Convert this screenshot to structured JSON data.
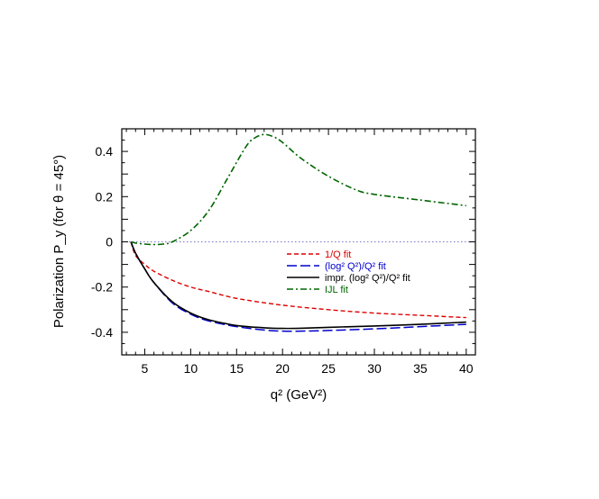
{
  "chart_data": {
    "type": "line",
    "xlabel": "q² (GeV²)",
    "ylabel": "Polarization P_y (for θ = 45°)",
    "xlim": [
      2.5,
      41
    ],
    "ylim": [
      -0.5,
      0.5
    ],
    "x_ticks": [
      5,
      10,
      15,
      20,
      25,
      30,
      35,
      40
    ],
    "y_ticks": [
      0.4,
      0.2,
      0,
      -0.2,
      -0.4
    ],
    "y_tick_labels": [
      "0.4",
      "0.2",
      "0",
      "-0.2",
      "-0.4"
    ],
    "grid": false,
    "zero_line": true,
    "legend_position": "lower-right",
    "series": [
      {
        "name": "1/Q fit",
        "color": "#dd0000",
        "dash": "short-dash",
        "x": [
          3.5,
          4,
          5,
          6,
          8,
          10,
          12,
          15,
          20,
          25,
          30,
          35,
          40
        ],
        "y": [
          0,
          -0.06,
          -0.1,
          -0.13,
          -0.17,
          -0.2,
          -0.22,
          -0.25,
          -0.28,
          -0.3,
          -0.315,
          -0.325,
          -0.335
        ]
      },
      {
        "name": "(log² Q²)/Q² fit",
        "color": "#0000cc",
        "dash": "long-dash",
        "x": [
          3.5,
          4,
          5,
          6,
          8,
          10,
          12,
          15,
          18,
          20,
          22,
          25,
          30,
          35,
          40
        ],
        "y": [
          0,
          -0.05,
          -0.12,
          -0.18,
          -0.27,
          -0.32,
          -0.35,
          -0.375,
          -0.39,
          -0.395,
          -0.395,
          -0.392,
          -0.385,
          -0.375,
          -0.365
        ]
      },
      {
        "name": "impr. (log² Q²)/Q² fit",
        "color": "#000000",
        "dash": "solid",
        "x": [
          3.5,
          4,
          5,
          6,
          8,
          10,
          12,
          15,
          18,
          20,
          22,
          25,
          30,
          35,
          40
        ],
        "y": [
          0,
          -0.05,
          -0.12,
          -0.18,
          -0.265,
          -0.315,
          -0.345,
          -0.37,
          -0.38,
          -0.383,
          -0.382,
          -0.378,
          -0.372,
          -0.365,
          -0.355
        ]
      },
      {
        "name": "IJL fit",
        "color": "#006600",
        "dash": "dash-dot",
        "x": [
          3.5,
          4,
          5,
          6,
          7,
          8,
          10,
          12,
          14,
          16,
          17,
          18,
          19,
          20,
          22,
          25,
          28,
          30,
          35,
          40
        ],
        "y": [
          0,
          -0.005,
          -0.01,
          -0.012,
          -0.01,
          0.0,
          0.05,
          0.14,
          0.28,
          0.42,
          0.46,
          0.475,
          0.465,
          0.44,
          0.37,
          0.29,
          0.23,
          0.21,
          0.185,
          0.16
        ]
      }
    ]
  }
}
